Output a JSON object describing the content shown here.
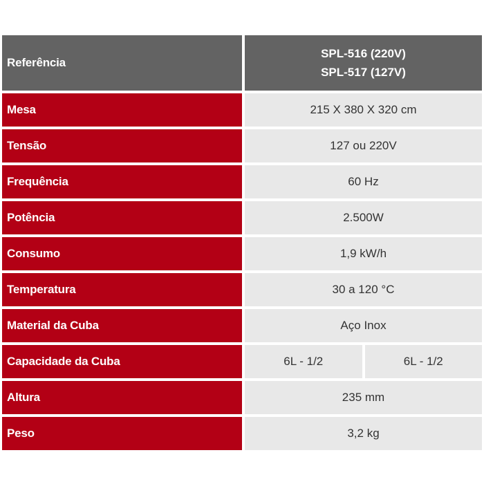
{
  "header": {
    "label": "Referência",
    "values": [
      "SPL-516 (220V)",
      "SPL-517 (127V)"
    ]
  },
  "rows": [
    {
      "label": "Mesa",
      "value": "215 X 380 X 320 cm"
    },
    {
      "label": "Tensão",
      "value": "127 ou 220V"
    },
    {
      "label": "Frequência",
      "value": "60 Hz"
    },
    {
      "label": "Potência",
      "value": "2.500W"
    },
    {
      "label": "Consumo",
      "value": "1,9 kW/h"
    },
    {
      "label": "Temperatura",
      "value": "30 a 120 °C"
    },
    {
      "label": "Material da Cuba",
      "value": "Aço Inox"
    },
    {
      "label": "Capacidade da Cuba",
      "values": [
        "6L - 1/2",
        "6L - 1/2"
      ]
    },
    {
      "label": "Altura",
      "value": "235 mm"
    },
    {
      "label": "Peso",
      "value": "3,2 kg"
    }
  ],
  "colors": {
    "label_bg": "#b30015",
    "header_bg": "#636363",
    "value_bg": "#e8e8e8"
  }
}
